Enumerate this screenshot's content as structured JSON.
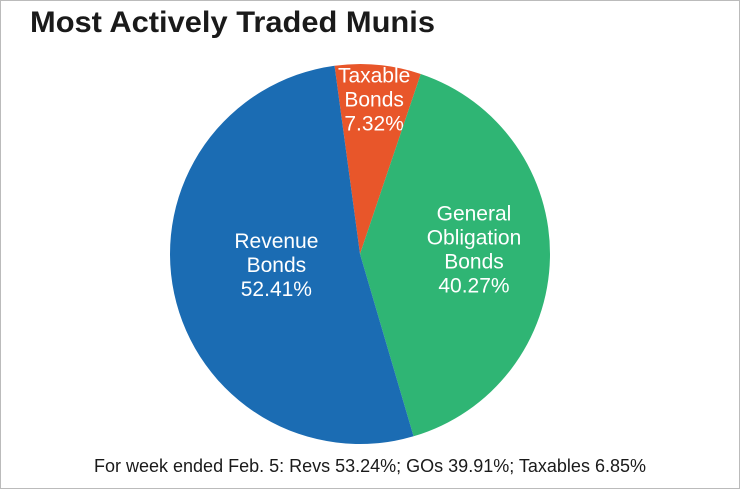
{
  "chart_data": {
    "type": "pie",
    "title": "Most Actively Traded Munis",
    "categories": [
      "Taxable Bonds",
      "General Obligation Bonds",
      "Revenue Bonds"
    ],
    "values": [
      7.32,
      40.27,
      52.41
    ],
    "value_labels": [
      "7.32%",
      "40.27%",
      "52.41%"
    ],
    "colors": [
      "#e8562a",
      "#2fb574",
      "#1b6cb3"
    ],
    "footnote": "For week ended Feb. 5: Revs 53.24%; GOs 39.91%; Taxables 6.85%"
  }
}
